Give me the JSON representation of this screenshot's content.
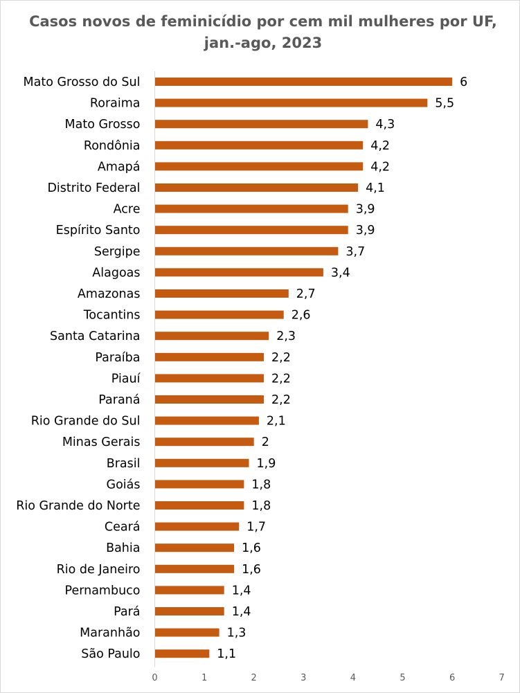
{
  "chart_data": {
    "type": "bar",
    "orientation": "horizontal",
    "title": "Casos novos de feminicídio por cem mil mulheres por UF, jan.-ago, 2023",
    "xlabel": "",
    "ylabel": "",
    "xlim": [
      0,
      7
    ],
    "x_ticks": [
      "0",
      "1",
      "2",
      "3",
      "4",
      "5",
      "6",
      "7"
    ],
    "grid": false,
    "legend": "none",
    "bar_color": "#C55A11",
    "categories": [
      "Mato Grosso do Sul",
      "Roraima",
      "Mato Grosso",
      "Rondônia",
      "Amapá",
      "Distrito Federal",
      "Acre",
      "Espírito Santo",
      "Sergipe",
      "Alagoas",
      "Amazonas",
      "Tocantins",
      "Santa Catarina",
      "Paraíba",
      "Piauí",
      "Paraná",
      "Rio Grande do Sul",
      "Minas Gerais",
      "Brasil",
      "Goiás",
      "Rio Grande do Norte",
      "Ceará",
      "Bahia",
      "Rio de Janeiro",
      "Pernambuco",
      "Pará",
      "Maranhão",
      "São Paulo"
    ],
    "values": [
      6,
      5.5,
      4.3,
      4.2,
      4.2,
      4.1,
      3.9,
      3.9,
      3.7,
      3.4,
      2.7,
      2.6,
      2.3,
      2.2,
      2.2,
      2.2,
      2.1,
      2,
      1.9,
      1.8,
      1.8,
      1.7,
      1.6,
      1.6,
      1.4,
      1.4,
      1.3,
      1.1
    ],
    "value_labels": [
      "6",
      "5,5",
      "4,3",
      "4,2",
      "4,2",
      "4,1",
      "3,9",
      "3,9",
      "3,7",
      "3,4",
      "2,7",
      "2,6",
      "2,3",
      "2,2",
      "2,2",
      "2,2",
      "2,1",
      "2",
      "1,9",
      "1,8",
      "1,8",
      "1,7",
      "1,6",
      "1,6",
      "1,4",
      "1,4",
      "1,3",
      "1,1"
    ]
  }
}
